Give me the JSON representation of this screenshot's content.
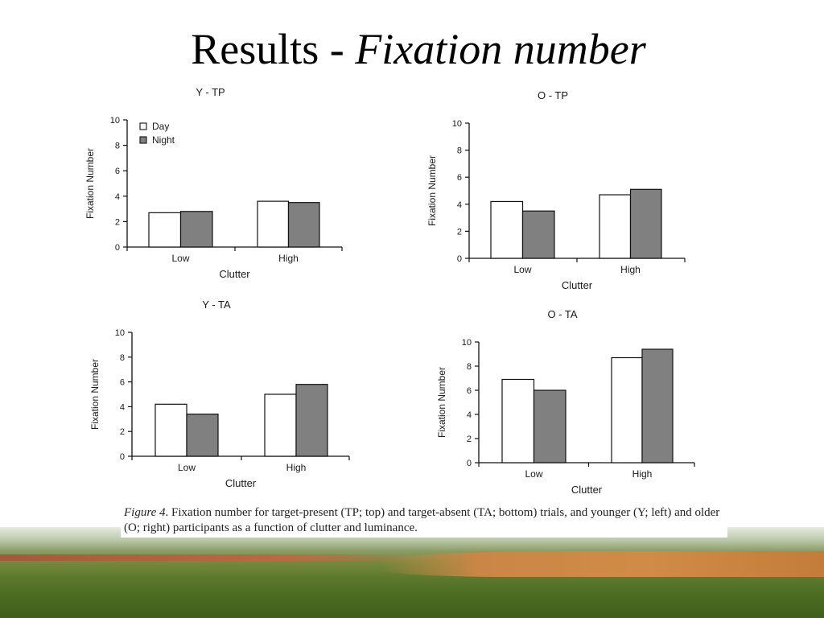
{
  "slide": {
    "title_plain": "Results - ",
    "title_italic": "Fixation number",
    "caption_label": "Figure 4",
    "caption_text": ". Fixation number for target-present (TP; top) and target-absent (TA; bottom) trials, and younger (Y; left) and older (O; right) participants as a function of clutter and luminance."
  },
  "colors": {
    "day": "#ffffff",
    "night": "#808080",
    "axis": "#111111"
  },
  "chart_data": [
    {
      "type": "bar",
      "title": "Y - TP",
      "categories": [
        "Low",
        "High"
      ],
      "series": [
        {
          "name": "Day",
          "values": [
            2.7,
            3.6
          ]
        },
        {
          "name": "Night",
          "values": [
            2.8,
            3.5
          ]
        }
      ],
      "xlabel": "Clutter",
      "ylabel": "Fixation Number",
      "ylim": [
        0,
        10
      ],
      "yticks": [
        "0",
        "2",
        "4",
        "6",
        "8",
        "10"
      ],
      "legend": "top-left",
      "grid": false
    },
    {
      "type": "bar",
      "title": "O - TP",
      "categories": [
        "Low",
        "High"
      ],
      "series": [
        {
          "values": [
            4.2,
            4.7
          ]
        },
        {
          "values": [
            3.5,
            5.1
          ]
        }
      ],
      "xlabel": "Clutter",
      "ylabel": "Fixation Number",
      "ylim": [
        0,
        10
      ],
      "yticks": [
        "0",
        "2",
        "4",
        "6",
        "8",
        "10"
      ],
      "grid": false
    },
    {
      "type": "bar",
      "title": "Y - TA",
      "categories": [
        "Low",
        "High"
      ],
      "series": [
        {
          "values": [
            4.2,
            5.0
          ]
        },
        {
          "values": [
            3.4,
            5.8
          ]
        }
      ],
      "xlabel": "Clutter",
      "ylabel": "Fixation Number",
      "ylim": [
        0,
        10
      ],
      "yticks": [
        "0",
        "2",
        "4",
        "6",
        "8",
        "10"
      ],
      "grid": false
    },
    {
      "type": "bar",
      "title": "O - TA",
      "categories": [
        "Low",
        "High"
      ],
      "series": [
        {
          "values": [
            6.9,
            8.7
          ]
        },
        {
          "values": [
            6.0,
            9.4
          ]
        }
      ],
      "xlabel": "Clutter",
      "ylabel": "Fixation Number",
      "ylim": [
        0,
        10
      ],
      "yticks": [
        "0",
        "2",
        "4",
        "6",
        "8",
        "10"
      ],
      "grid": false
    }
  ]
}
